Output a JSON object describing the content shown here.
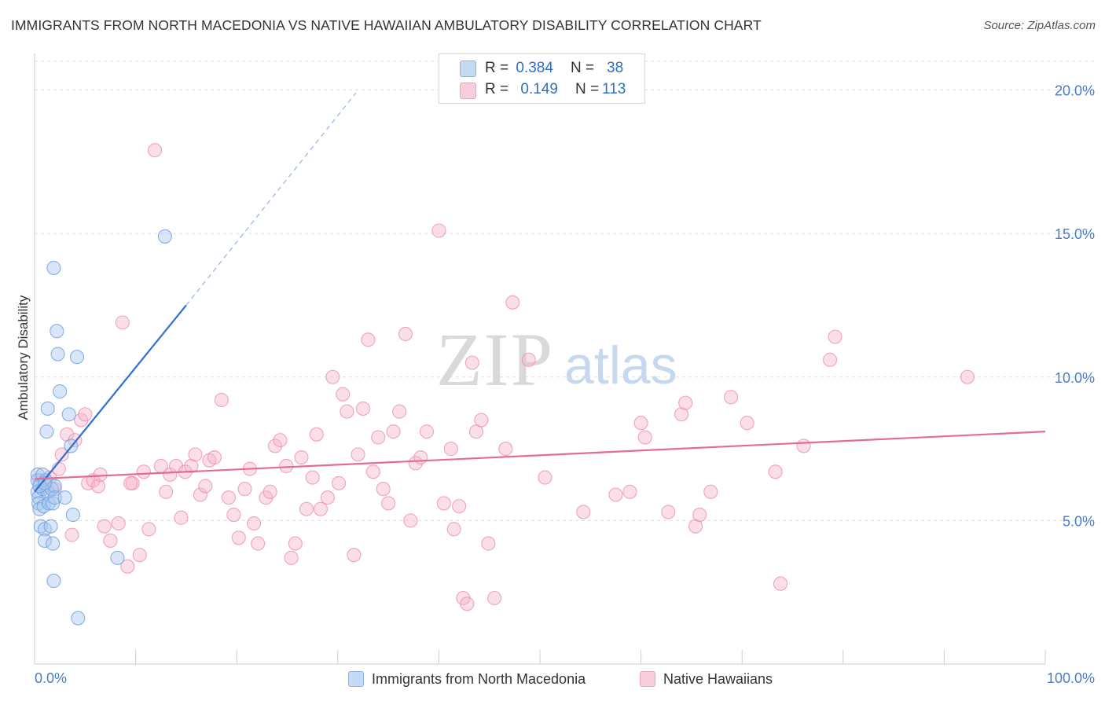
{
  "title": "IMMIGRANTS FROM NORTH MACEDONIA VS NATIVE HAWAIIAN AMBULATORY DISABILITY CORRELATION CHART",
  "source": "Source: ZipAtlas.com",
  "watermark": {
    "zip": "ZIP",
    "atlas": "atlas"
  },
  "legend": {
    "rows": [
      {
        "r_label": "R =",
        "r_value": "0.384",
        "n_label": "N =",
        "n_value": "38"
      },
      {
        "r_label": "R =",
        "r_value": "0.149",
        "n_label": "N =",
        "n_value": "113"
      }
    ]
  },
  "colors": {
    "blue_fill": "#a9c8f0",
    "blue_stroke": "#6b9fe0",
    "blue_line": "#2f6fd0",
    "pink_fill": "#f5b8cb",
    "pink_stroke": "#ee8fae",
    "pink_line": "#e26b98",
    "grid": "#dddddd",
    "tick_label": "#4a7cc7"
  },
  "chart_data": {
    "type": "scatter",
    "title": "IMMIGRANTS FROM NORTH MACEDONIA VS NATIVE HAWAIIAN AMBULATORY DISABILITY CORRELATION CHART",
    "xlabel": "",
    "ylabel": "Ambulatory Disability",
    "xlim": [
      0,
      100
    ],
    "ylim": [
      0,
      21
    ],
    "x_tick_labels": [
      "0.0%",
      "100.0%"
    ],
    "y_ticks": [
      5,
      10,
      15,
      20
    ],
    "y_tick_labels": [
      "5.0%",
      "10.0%",
      "15.0%",
      "20.0%"
    ],
    "grid": true,
    "legend_position": "top-center",
    "series": [
      {
        "name": "Immigrants from North Macedonia",
        "color": "#6b9fe0",
        "r": 0.384,
        "n": 38,
        "trend": {
          "x": [
            0,
            15.0
          ],
          "y": [
            6.0,
            12.5
          ],
          "dashed_to": {
            "x": 31.8,
            "y": 19.9
          }
        },
        "points": [
          [
            0.3,
            6.6
          ],
          [
            0.3,
            6.4
          ],
          [
            0.3,
            6.0
          ],
          [
            0.4,
            5.8
          ],
          [
            0.4,
            5.6
          ],
          [
            0.5,
            5.4
          ],
          [
            0.6,
            4.8
          ],
          [
            0.8,
            6.6
          ],
          [
            0.8,
            6.1
          ],
          [
            0.9,
            5.5
          ],
          [
            1.0,
            4.7
          ],
          [
            1.0,
            4.3
          ],
          [
            1.1,
            6.4
          ],
          [
            1.2,
            8.1
          ],
          [
            1.3,
            8.9
          ],
          [
            1.3,
            6.0
          ],
          [
            1.4,
            5.6
          ],
          [
            1.6,
            4.8
          ],
          [
            1.7,
            6.1
          ],
          [
            1.8,
            5.6
          ],
          [
            1.8,
            4.2
          ],
          [
            1.9,
            13.8
          ],
          [
            1.9,
            2.9
          ],
          [
            2.0,
            6.2
          ],
          [
            2.0,
            5.8
          ],
          [
            2.2,
            11.6
          ],
          [
            2.3,
            10.8
          ],
          [
            2.5,
            9.5
          ],
          [
            3.0,
            5.8
          ],
          [
            3.4,
            8.7
          ],
          [
            3.6,
            7.6
          ],
          [
            3.8,
            5.2
          ],
          [
            4.2,
            10.7
          ],
          [
            4.3,
            1.6
          ],
          [
            8.2,
            3.7
          ],
          [
            12.9,
            14.9
          ],
          [
            0.5,
            6.2
          ],
          [
            1.0,
            6.3
          ]
        ]
      },
      {
        "name": "Native Hawaiians",
        "color": "#ee8fae",
        "r": 0.149,
        "n": 113,
        "trend": {
          "x": [
            0,
            100
          ],
          "y": [
            6.45,
            8.1
          ]
        },
        "points": [
          [
            0.5,
            6.4
          ],
          [
            1.0,
            6.2
          ],
          [
            1.5,
            6.5
          ],
          [
            2.0,
            6.1
          ],
          [
            2.4,
            6.8
          ],
          [
            2.7,
            7.3
          ],
          [
            3.2,
            8.0
          ],
          [
            3.7,
            4.5
          ],
          [
            4.0,
            7.8
          ],
          [
            4.6,
            8.5
          ],
          [
            5.0,
            8.7
          ],
          [
            5.3,
            6.3
          ],
          [
            5.8,
            6.4
          ],
          [
            6.3,
            6.2
          ],
          [
            6.9,
            4.8
          ],
          [
            7.5,
            4.3
          ],
          [
            8.3,
            4.9
          ],
          [
            8.7,
            11.9
          ],
          [
            9.2,
            3.4
          ],
          [
            9.7,
            6.3
          ],
          [
            10.4,
            3.8
          ],
          [
            10.8,
            6.7
          ],
          [
            11.3,
            4.7
          ],
          [
            11.9,
            17.9
          ],
          [
            12.5,
            6.9
          ],
          [
            13.0,
            6.0
          ],
          [
            13.4,
            6.6
          ],
          [
            14.0,
            6.9
          ],
          [
            14.5,
            5.1
          ],
          [
            14.9,
            6.7
          ],
          [
            15.5,
            6.9
          ],
          [
            15.9,
            7.3
          ],
          [
            16.4,
            5.9
          ],
          [
            16.9,
            6.2
          ],
          [
            17.3,
            7.1
          ],
          [
            17.8,
            7.2
          ],
          [
            18.5,
            9.2
          ],
          [
            19.2,
            5.8
          ],
          [
            19.7,
            5.2
          ],
          [
            20.2,
            4.4
          ],
          [
            20.8,
            6.1
          ],
          [
            21.3,
            6.8
          ],
          [
            21.7,
            4.9
          ],
          [
            22.1,
            4.2
          ],
          [
            22.9,
            5.8
          ],
          [
            23.3,
            6.0
          ],
          [
            23.8,
            7.6
          ],
          [
            24.3,
            7.8
          ],
          [
            24.9,
            6.9
          ],
          [
            25.4,
            3.7
          ],
          [
            25.8,
            4.2
          ],
          [
            26.4,
            7.2
          ],
          [
            26.9,
            5.4
          ],
          [
            27.5,
            6.5
          ],
          [
            27.9,
            8.0
          ],
          [
            28.3,
            5.4
          ],
          [
            29.0,
            5.8
          ],
          [
            29.5,
            10.0
          ],
          [
            30.1,
            6.3
          ],
          [
            30.5,
            9.4
          ],
          [
            30.9,
            8.8
          ],
          [
            31.6,
            3.8
          ],
          [
            32.0,
            7.3
          ],
          [
            32.5,
            8.9
          ],
          [
            33.0,
            11.3
          ],
          [
            33.5,
            6.7
          ],
          [
            34.0,
            7.9
          ],
          [
            34.5,
            6.1
          ],
          [
            35.0,
            5.6
          ],
          [
            35.5,
            8.1
          ],
          [
            36.1,
            8.8
          ],
          [
            36.7,
            11.5
          ],
          [
            37.2,
            5.0
          ],
          [
            37.7,
            7.0
          ],
          [
            38.2,
            7.2
          ],
          [
            38.8,
            8.1
          ],
          [
            40.0,
            15.1
          ],
          [
            40.5,
            5.6
          ],
          [
            41.2,
            7.5
          ],
          [
            41.5,
            4.7
          ],
          [
            42.0,
            5.5
          ],
          [
            42.4,
            2.3
          ],
          [
            42.8,
            2.1
          ],
          [
            43.3,
            10.5
          ],
          [
            43.7,
            8.1
          ],
          [
            44.2,
            8.5
          ],
          [
            44.9,
            4.2
          ],
          [
            45.5,
            2.3
          ],
          [
            46.6,
            7.5
          ],
          [
            47.3,
            12.6
          ],
          [
            48.9,
            10.6
          ],
          [
            50.5,
            6.5
          ],
          [
            54.3,
            5.3
          ],
          [
            57.5,
            5.9
          ],
          [
            58.9,
            6.0
          ],
          [
            60.0,
            8.4
          ],
          [
            60.4,
            7.9
          ],
          [
            62.7,
            5.3
          ],
          [
            64.0,
            8.7
          ],
          [
            64.4,
            9.1
          ],
          [
            65.4,
            4.8
          ],
          [
            65.8,
            5.2
          ],
          [
            66.9,
            6.0
          ],
          [
            68.9,
            9.3
          ],
          [
            70.5,
            8.4
          ],
          [
            73.3,
            6.7
          ],
          [
            73.8,
            2.8
          ],
          [
            76.1,
            7.6
          ],
          [
            78.7,
            10.6
          ],
          [
            79.2,
            11.4
          ],
          [
            92.3,
            10.0
          ],
          [
            6.5,
            6.6
          ],
          [
            9.5,
            6.3
          ]
        ]
      }
    ]
  },
  "bottom_legend": [
    {
      "label": "Immigrants from North Macedonia"
    },
    {
      "label": "Native Hawaiians"
    }
  ]
}
